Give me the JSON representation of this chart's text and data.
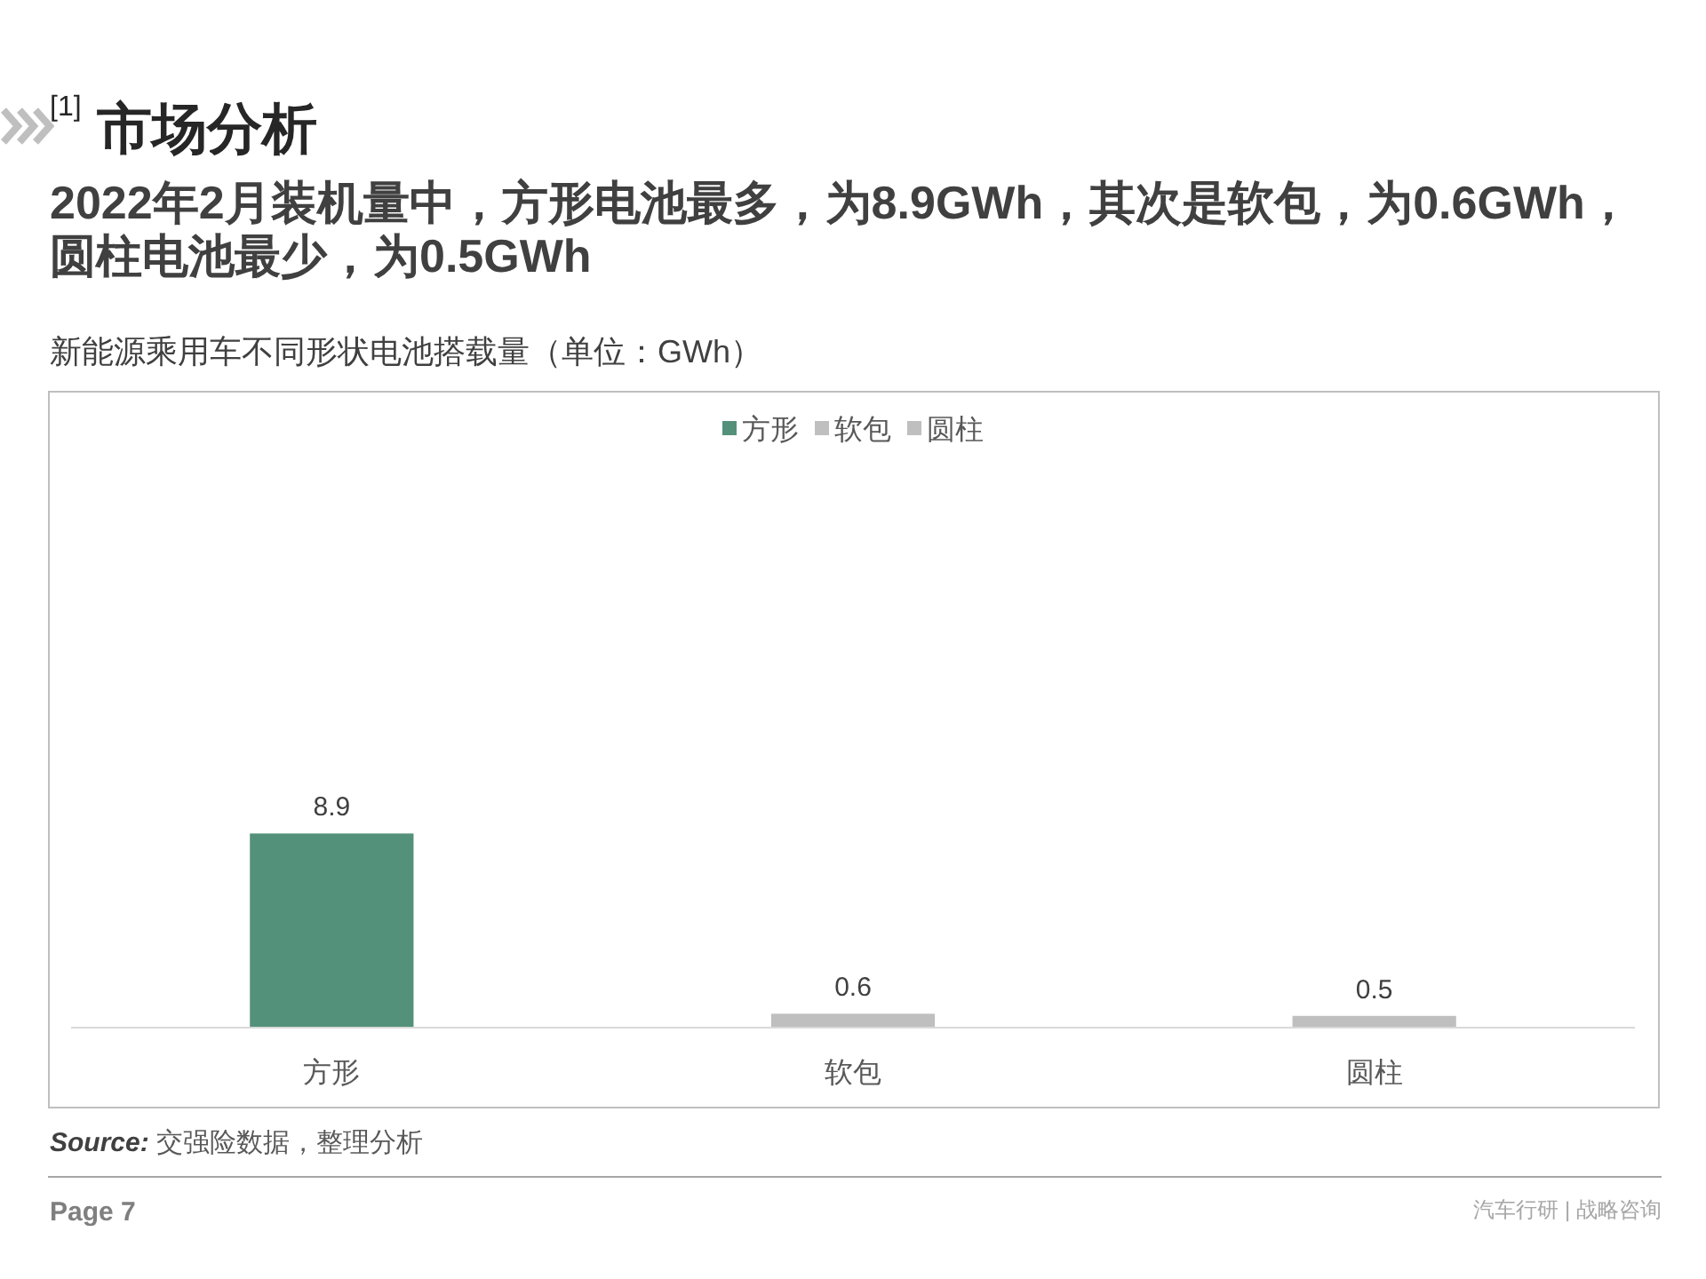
{
  "chart_data": {
    "type": "bar",
    "title": "新能源乘用车不同形状电池搭载量（单位：GWh）",
    "subtitle": "2022年2月装机量中，方形电池最多，为8.9GWh，其次是软包，为0.6GWh，圆柱电池最少，为0.5GWh",
    "categories": [
      "方形",
      "软包",
      "圆柱"
    ],
    "stacked": true,
    "series": [
      {
        "name": "方形",
        "color": "#54917a",
        "values": [
          8.9,
          null,
          null
        ]
      },
      {
        "name": "软包",
        "color": "#bfbfbf",
        "values": [
          null,
          0.6,
          null
        ]
      },
      {
        "name": "圆柱",
        "color": "#bfbfbf",
        "values": [
          null,
          null,
          0.5
        ]
      }
    ],
    "legend": "top",
    "data_labels": true,
    "annotations": [
      "$^{[1]}$ 市场分析",
      "**Source:** 交强险数据，整理分析",
      "Page 7",
      "汽车行研 | 战略咨询"
    ]
  }
}
